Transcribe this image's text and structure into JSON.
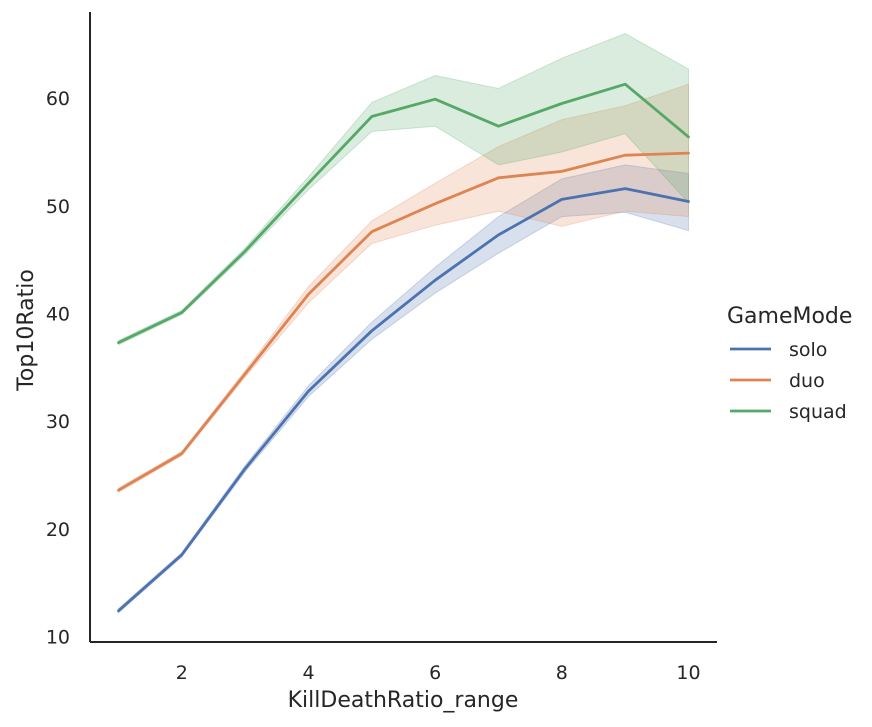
{
  "chart_data": {
    "type": "line",
    "xlabel": "KillDeathRatio_range",
    "ylabel": "Top10Ratio",
    "xlim": [
      0.55,
      10.45
    ],
    "ylim": [
      9.5,
      68.0
    ],
    "xticks": [
      2,
      4,
      6,
      8,
      10
    ],
    "yticks": [
      10,
      20,
      30,
      40,
      50,
      60
    ],
    "grid": false,
    "legend": {
      "title": "GameMode",
      "placement": "right"
    },
    "x": [
      1,
      2,
      3,
      4,
      5,
      6,
      7,
      8,
      9,
      10
    ],
    "series": [
      {
        "name": "solo",
        "color": "#4c72b0",
        "values": [
          12.4,
          17.6,
          25.6,
          32.8,
          38.4,
          43.1,
          47.3,
          50.6,
          51.6,
          50.4
        ],
        "ci_low": [
          12.2,
          17.4,
          25.3,
          32.3,
          37.6,
          41.9,
          45.6,
          49.0,
          49.4,
          47.7
        ],
        "ci_high": [
          12.6,
          17.8,
          25.9,
          33.3,
          39.2,
          44.3,
          49.0,
          52.5,
          53.8,
          53.0
        ]
      },
      {
        "name": "duo",
        "color": "#dd8452",
        "values": [
          23.6,
          27.0,
          34.4,
          41.8,
          47.6,
          50.2,
          52.6,
          53.2,
          54.7,
          54.9
        ],
        "ci_low": [
          23.4,
          26.8,
          34.1,
          41.0,
          46.5,
          48.2,
          49.5,
          48.1,
          49.5,
          49.0
        ],
        "ci_high": [
          23.8,
          27.2,
          34.7,
          42.5,
          48.6,
          52.1,
          55.5,
          58.0,
          59.3,
          61.3
        ]
      },
      {
        "name": "squad",
        "color": "#55a868",
        "values": [
          37.3,
          40.1,
          45.8,
          52.1,
          58.3,
          59.9,
          57.4,
          59.5,
          61.3,
          56.4
        ],
        "ci_low": [
          37.1,
          39.9,
          45.5,
          51.5,
          56.9,
          57.4,
          53.8,
          55.0,
          56.7,
          50.3
        ],
        "ci_high": [
          37.5,
          40.3,
          46.1,
          52.7,
          59.6,
          62.1,
          60.9,
          63.7,
          66.0,
          62.7
        ]
      }
    ]
  }
}
